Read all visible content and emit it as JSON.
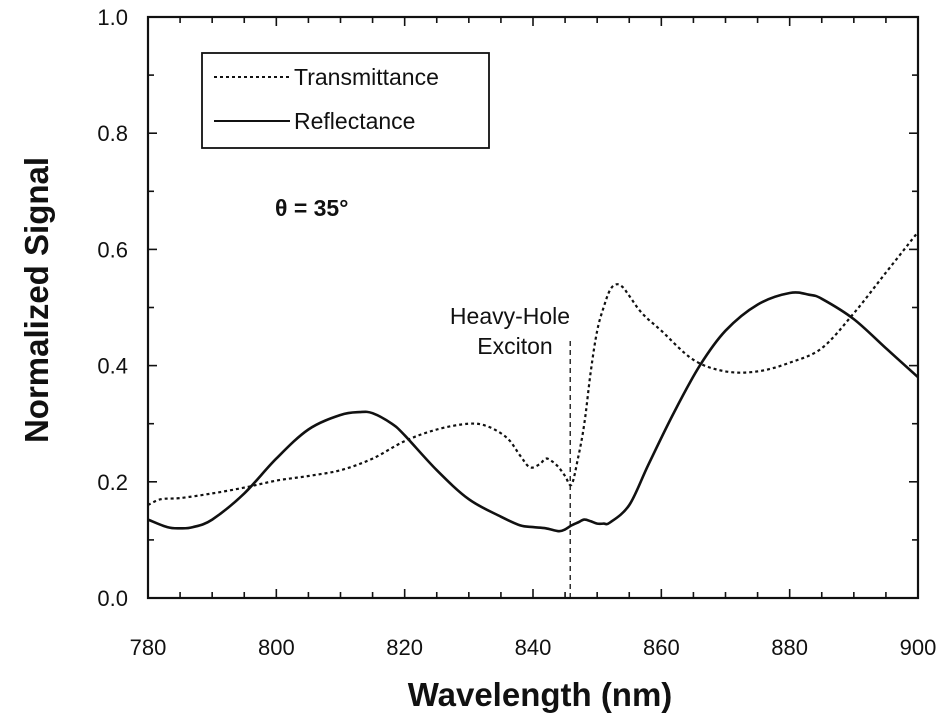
{
  "chart_data": {
    "type": "line",
    "title": "",
    "xlabel": "Wavelength (nm)",
    "ylabel": "Normalized Signal",
    "xlim": [
      780,
      900
    ],
    "ylim": [
      0.0,
      1.0
    ],
    "x_ticks": [
      780,
      800,
      820,
      840,
      860,
      880,
      900
    ],
    "x_tick_labels": [
      "780",
      "800",
      "820",
      "840",
      "860",
      "880",
      "900"
    ],
    "y_ticks": [
      0.0,
      0.2,
      0.4,
      0.6,
      0.8,
      1.0
    ],
    "y_tick_labels": [
      "0.0",
      "0.2",
      "0.4",
      "0.6",
      "0.8",
      "1.0"
    ],
    "grid": false,
    "legend_position": "top-left",
    "series": [
      {
        "name": "Transmittance",
        "style": "dotted",
        "color": "#111111",
        "x": [
          780,
          782,
          785,
          790,
          795,
          800,
          805,
          810,
          815,
          820,
          825,
          830,
          833,
          836,
          838,
          839.5,
          841,
          842,
          843,
          844,
          845,
          846,
          847,
          848,
          849,
          850,
          851,
          852,
          853,
          854,
          855,
          857,
          860,
          865,
          870,
          875,
          880,
          885,
          890,
          895,
          900
        ],
        "y": [
          0.16,
          0.17,
          0.172,
          0.18,
          0.19,
          0.202,
          0.21,
          0.22,
          0.24,
          0.27,
          0.29,
          0.3,
          0.295,
          0.275,
          0.245,
          0.225,
          0.23,
          0.24,
          0.235,
          0.225,
          0.21,
          0.195,
          0.24,
          0.3,
          0.39,
          0.46,
          0.5,
          0.53,
          0.54,
          0.535,
          0.52,
          0.49,
          0.46,
          0.41,
          0.39,
          0.39,
          0.405,
          0.43,
          0.49,
          0.56,
          0.63
        ]
      },
      {
        "name": "Reflectance",
        "style": "solid",
        "color": "#111111",
        "x": [
          780,
          783,
          785,
          787,
          790,
          795,
          800,
          805,
          810,
          813,
          815,
          818,
          820,
          825,
          830,
          835,
          838,
          840,
          842,
          844,
          845,
          846,
          847,
          848,
          849,
          850,
          851,
          852,
          855,
          858,
          862,
          866,
          870,
          875,
          880,
          883,
          885,
          890,
          895,
          900
        ],
        "y": [
          0.135,
          0.122,
          0.12,
          0.122,
          0.135,
          0.18,
          0.24,
          0.29,
          0.315,
          0.32,
          0.318,
          0.3,
          0.28,
          0.22,
          0.17,
          0.14,
          0.125,
          0.122,
          0.12,
          0.115,
          0.118,
          0.125,
          0.13,
          0.135,
          0.132,
          0.128,
          0.128,
          0.13,
          0.16,
          0.23,
          0.32,
          0.4,
          0.46,
          0.505,
          0.525,
          0.522,
          0.515,
          0.48,
          0.43,
          0.38
        ]
      }
    ],
    "annotations": [
      {
        "text": "Heavy-Hole",
        "x": 845.8,
        "y": 0.0
      },
      {
        "text": "Exciton",
        "x": 845.8,
        "y": 0.0
      },
      {
        "text": "θ = 35°"
      }
    ]
  }
}
